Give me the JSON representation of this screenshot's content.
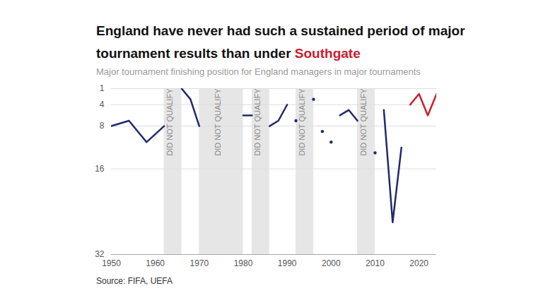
{
  "chart_data": {
    "type": "line",
    "title": "England have never had such a sustained period of major tournament results than under Southgate",
    "subtitle": "Major tournament finishing position for England managers in major tournaments",
    "source": "Source: FIFA, UEFA",
    "xlim": [
      1950,
      2024
    ],
    "xticks": [
      1950,
      1960,
      1970,
      1980,
      1990,
      2000,
      2010,
      2020
    ],
    "ylim": [
      32,
      1
    ],
    "yticks": [
      1,
      4,
      8,
      16,
      32
    ],
    "grid": true,
    "series": [
      {
        "color": "#1f2a6b",
        "x": [
          1950,
          1954,
          1958,
          1962
        ],
        "values": [
          8,
          7,
          11,
          8
        ]
      },
      {
        "color": "#1f2a6b",
        "x": [
          1966,
          1968,
          1970
        ],
        "values": [
          1,
          3,
          8
        ]
      },
      {
        "color": "#1f2a6b",
        "x": [
          1980,
          1982
        ],
        "values": [
          6,
          6
        ]
      },
      {
        "color": "#1f2a6b",
        "x": [
          1986,
          1988,
          1990
        ],
        "values": [
          8,
          7,
          4
        ]
      },
      {
        "color": "#1f2a6b",
        "x": [
          1992
        ],
        "values": [
          7
        ]
      },
      {
        "color": "#1f2a6b",
        "x": [
          1996
        ],
        "values": [
          3
        ]
      },
      {
        "color": "#1f2a6b",
        "x": [
          1998
        ],
        "values": [
          9
        ]
      },
      {
        "color": "#1f2a6b",
        "x": [
          2000
        ],
        "values": [
          11
        ]
      },
      {
        "color": "#1f2a6b",
        "x": [
          2002,
          2004,
          2006
        ],
        "values": [
          6,
          5,
          7
        ]
      },
      {
        "color": "#1f2a6b",
        "x": [
          2010
        ],
        "values": [
          13
        ]
      },
      {
        "color": "#1f2a6b",
        "x": [
          2012,
          2014,
          2016
        ],
        "values": [
          5,
          26,
          12
        ]
      },
      {
        "color": "#c8202f",
        "x": [
          2018,
          2020,
          2022,
          2024
        ],
        "values": [
          4,
          2,
          6,
          2
        ]
      }
    ],
    "bands": [
      {
        "start": 1962,
        "end": 1966,
        "label": "DID NOT QUALIFY"
      },
      {
        "start": 1970,
        "end": 1980,
        "label": "DID NOT QUALIFY"
      },
      {
        "start": 1982,
        "end": 1986,
        "label": "DID NOT QUALIFY"
      },
      {
        "start": 1992,
        "end": 1996,
        "label": "DID NOT QUALIFY"
      },
      {
        "start": 2006,
        "end": 2010,
        "label": "DID NOT QUALIFY"
      }
    ]
  }
}
